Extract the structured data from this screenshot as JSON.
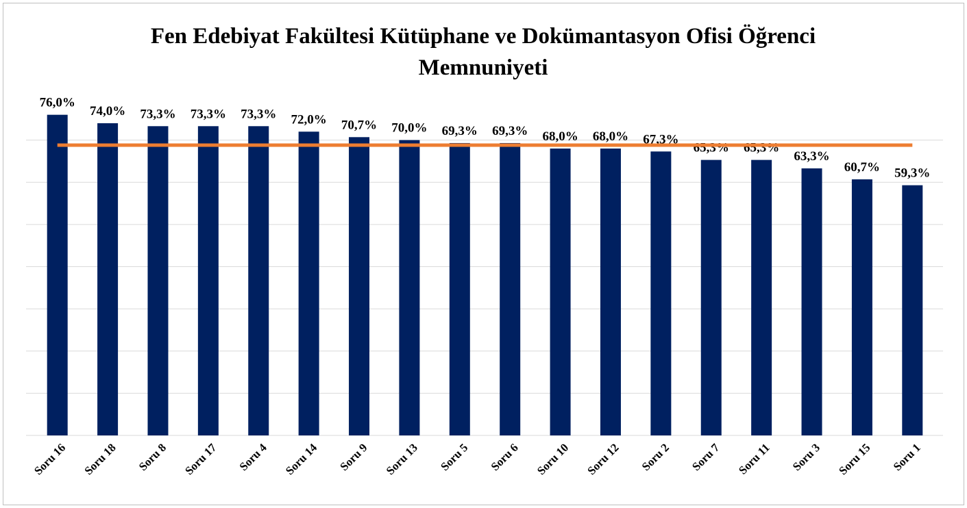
{
  "chart_data": {
    "type": "bar",
    "title": "Fen Edebiyat Fakültesi Kütüphane ve Dokümantasyon Ofisi Öğrenci Memnuniyeti",
    "categories": [
      "Soru 16",
      "Soru 18",
      "Soru 8",
      "Soru 17",
      "Soru 4",
      "Soru 14",
      "Soru 9",
      "Soru 13",
      "Soru 5",
      "Soru 6",
      "Soru 10",
      "Soru 12",
      "Soru 2",
      "Soru 7",
      "Soru 11",
      "Soru 3",
      "Soru 15",
      "Soru 1"
    ],
    "values": [
      76.0,
      74.0,
      73.3,
      73.3,
      73.3,
      72.0,
      70.7,
      70.0,
      69.3,
      69.3,
      68.0,
      68.0,
      67.3,
      65.3,
      65.3,
      63.3,
      60.7,
      59.3
    ],
    "value_labels": [
      "76,0%",
      "74,0%",
      "73,3%",
      "73,3%",
      "73,3%",
      "72,0%",
      "70,7%",
      "70,0%",
      "69,3%",
      "69,3%",
      "68,0%",
      "68,0%",
      "67,3%",
      "65,3%",
      "65,3%",
      "63,3%",
      "60,7%",
      "59,3%"
    ],
    "color": "#002060",
    "reference_line": {
      "value": 68.8,
      "color": "#ed7d31"
    },
    "ylim": [
      0,
      80
    ],
    "yticks": [
      0,
      10,
      20,
      30,
      40,
      50,
      60,
      70
    ],
    "grid": true
  }
}
